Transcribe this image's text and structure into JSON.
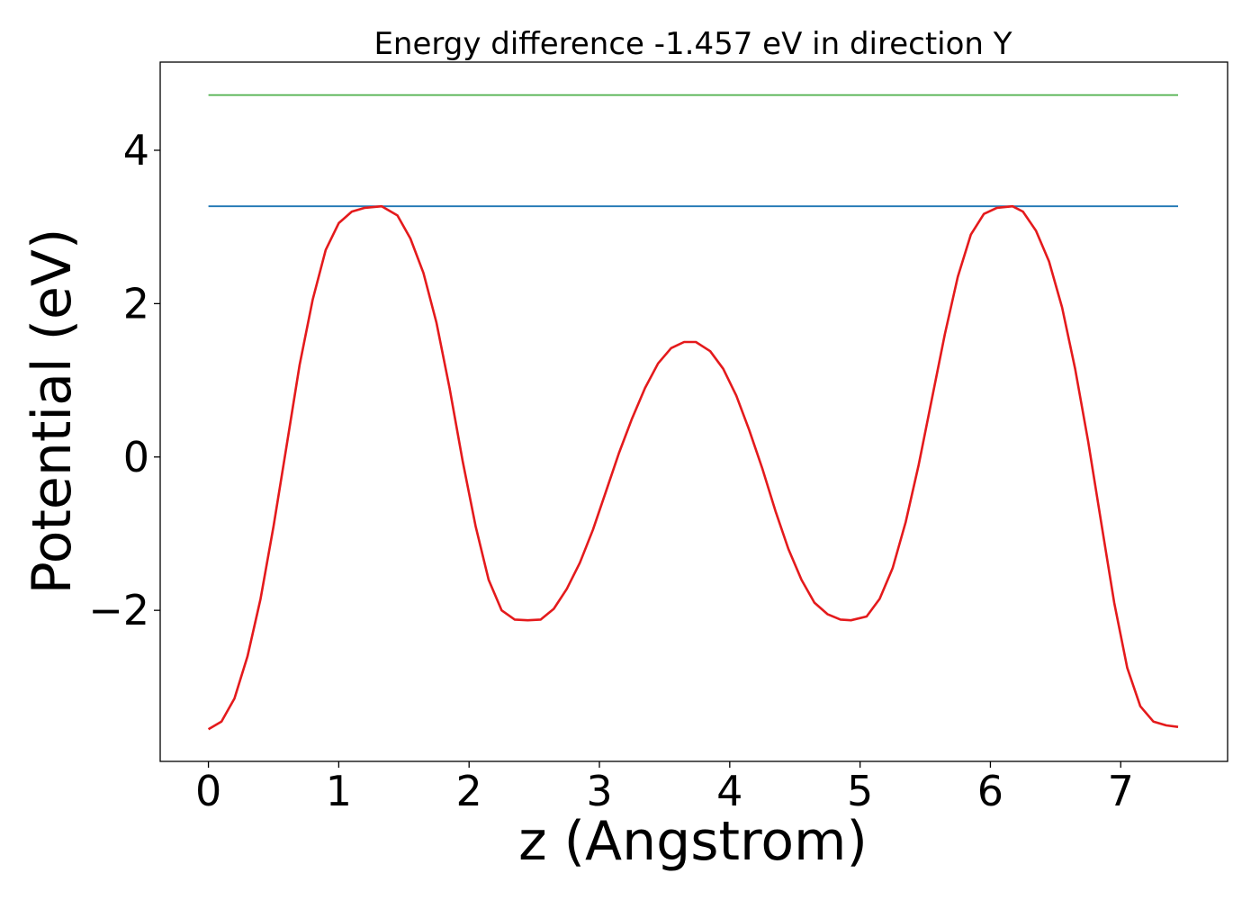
{
  "chart_data": {
    "type": "line",
    "title": "Energy difference -1.457 eV in direction Y",
    "xlabel": "z (Angstrom)",
    "ylabel": "Potential (eV)",
    "xlim": [
      -0.37,
      7.82
    ],
    "ylim": [
      -3.97,
      5.15
    ],
    "xticks": [
      0,
      1,
      2,
      3,
      4,
      5,
      6,
      7
    ],
    "xtick_labels": [
      "0",
      "1",
      "2",
      "3",
      "4",
      "5",
      "6",
      "7"
    ],
    "yticks": [
      -2,
      0,
      2,
      4
    ],
    "ytick_labels": [
      "−2",
      "0",
      "2",
      "4"
    ],
    "grid": false,
    "legend": "none",
    "series": [
      {
        "color": "#e41a1c",
        "x": [
          0,
          0.1,
          0.2,
          0.3,
          0.4,
          0.5,
          0.6,
          0.7,
          0.8,
          0.9,
          1.0,
          1.1,
          1.2,
          1.33,
          1.45,
          1.55,
          1.65,
          1.75,
          1.85,
          1.95,
          2.05,
          2.15,
          2.25,
          2.35,
          2.45,
          2.55,
          2.65,
          2.75,
          2.85,
          2.95,
          3.05,
          3.15,
          3.25,
          3.35,
          3.45,
          3.55,
          3.65,
          3.74,
          3.85,
          3.95,
          4.05,
          4.15,
          4.25,
          4.35,
          4.45,
          4.55,
          4.65,
          4.75,
          4.85,
          4.93,
          5.05,
          5.15,
          5.25,
          5.35,
          5.45,
          5.55,
          5.65,
          5.75,
          5.85,
          5.95,
          6.05,
          6.17,
          6.25,
          6.35,
          6.45,
          6.55,
          6.65,
          6.75,
          6.85,
          6.95,
          7.05,
          7.15,
          7.25,
          7.35,
          7.44
        ],
        "y": [
          -3.55,
          -3.45,
          -3.15,
          -2.6,
          -1.85,
          -0.9,
          0.15,
          1.2,
          2.05,
          2.7,
          3.05,
          3.2,
          3.25,
          3.27,
          3.15,
          2.85,
          2.4,
          1.75,
          0.9,
          -0.05,
          -0.9,
          -1.6,
          -2.0,
          -2.12,
          -2.13,
          -2.12,
          -1.98,
          -1.72,
          -1.38,
          -0.95,
          -0.45,
          0.05,
          0.5,
          0.9,
          1.22,
          1.42,
          1.5,
          1.5,
          1.38,
          1.15,
          0.8,
          0.35,
          -0.15,
          -0.7,
          -1.2,
          -1.6,
          -1.9,
          -2.05,
          -2.12,
          -2.13,
          -2.08,
          -1.85,
          -1.45,
          -0.85,
          -0.1,
          0.75,
          1.6,
          2.35,
          2.9,
          3.17,
          3.25,
          3.27,
          3.2,
          2.95,
          2.55,
          1.95,
          1.15,
          0.2,
          -0.85,
          -1.9,
          -2.75,
          -3.25,
          -3.45,
          -3.5,
          -3.52
        ]
      },
      {
        "color": "#1f77b4",
        "x": [
          0,
          7.44
        ],
        "y": [
          3.27,
          3.27
        ]
      },
      {
        "color": "#4daf4a",
        "x": [
          0,
          7.44
        ],
        "y": [
          4.72,
          4.72
        ]
      }
    ]
  }
}
